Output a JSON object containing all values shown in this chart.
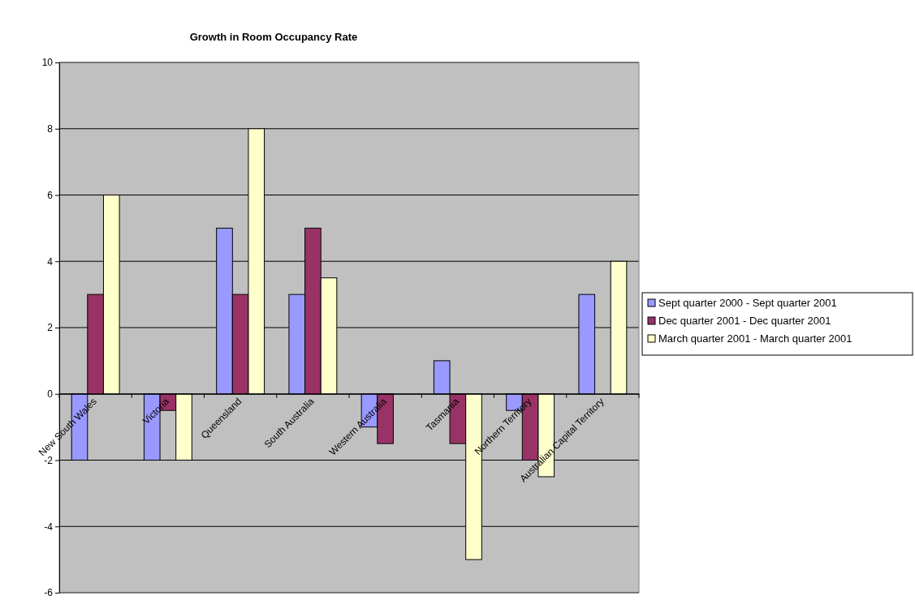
{
  "chart_data": {
    "type": "bar",
    "title": "Growth in Room Occupancy Rate",
    "categories": [
      "New South Wales",
      "Victoria",
      "Queensland",
      "South Australia",
      "Western Australia",
      "Tasmania",
      "Northern Territory",
      "Australian Capital Territory"
    ],
    "series": [
      {
        "name": "Sept quarter 2000 - Sept quarter 2001",
        "color": "#9999ff",
        "values": [
          -2,
          -2,
          5,
          3,
          -1,
          1,
          -0.5,
          3
        ]
      },
      {
        "name": "Dec quarter 2001 - Dec quarter 2001",
        "color": "#993366",
        "values": [
          3,
          -0.5,
          3,
          5,
          -1.5,
          -1.5,
          -2,
          null
        ]
      },
      {
        "name": "March quarter 2001 - March quarter 2001",
        "color": "#ffffcc",
        "values": [
          6,
          -2,
          8,
          3.5,
          null,
          -5,
          -2.5,
          4
        ]
      }
    ],
    "ylim": [
      -6,
      10
    ],
    "yticks": [
      -6,
      -4,
      -2,
      0,
      2,
      4,
      6,
      8,
      10
    ],
    "grid": "y",
    "legend": "right"
  }
}
